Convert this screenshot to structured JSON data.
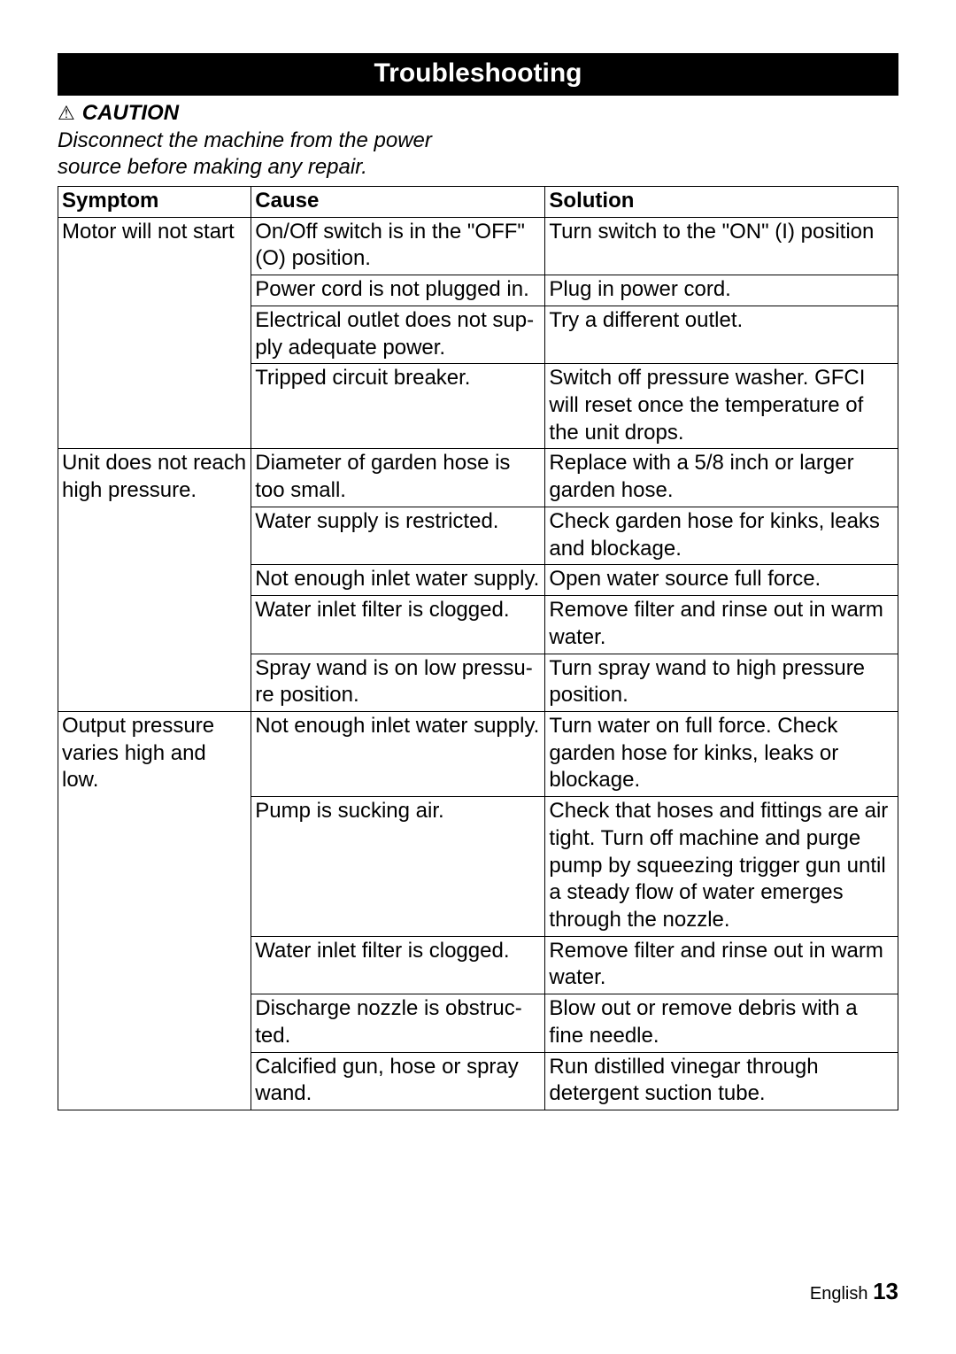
{
  "banner_title": "Troubleshooting",
  "caution_label": "CAUTION",
  "note_line1": "Disconnect the machine from the power",
  "note_line2": "source before making any repair.",
  "headers": {
    "symptom": "Symptom",
    "cause": "Cause",
    "solution": "Solution"
  },
  "rows": {
    "s1": "Motor will not start",
    "s1c1": "On/Off switch is in the \"OFF\" (O) position.",
    "s1s1": "Turn switch to the \"ON\" (I) po­sition",
    "s1c2": "Power cord is not plugged in.",
    "s1s2": "Plug in power cord.",
    "s1c3": "Electrical outlet does not sup­ply adequate power.",
    "s1s3": "Try a different outlet.",
    "s1c4": "Tripped circuit breaker.",
    "s1s4": "Switch off pressure washer. GFCI will reset once the tem­perature of the unit drops.",
    "s2": "Unit does not reach high pressure.",
    "s2c1": "Diameter of garden hose is too small.",
    "s2s1": "Replace with a 5/8 inch or lar­ger garden hose.",
    "s2c2": "Water supply is restricted.",
    "s2s2": "Check garden hose for kinks, leaks and blockage.",
    "s2c3": "Not enough inlet water supp­ly.",
    "s2s3": "Open water source full force.",
    "s2c4": "Water inlet filter is clogged.",
    "s2s4": "Remove filter and rinse out in warm water.",
    "s2c5": "Spray wand is on low pressu­re position.",
    "s2s5": "Turn spray wand to high pres­sure position.",
    "s3": "Output pressure va­ries high and low.",
    "s3c1": "Not enough inlet water supp­ly.",
    "s3s1": "Turn water on full force. Check garden hose for kinks, leaks or blockage.",
    "s3c2": "Pump is sucking air.",
    "s3s2": "Check that hoses and fittings are air tight. Turn off machine and purge pump by squee­zing trigger gun until a steady flow of water emerges throu­gh the nozzle.",
    "s3c3": "Water inlet filter is clogged.",
    "s3s3": "Remove filter and rinse out in warm water.",
    "s3c4": "Discharge nozzle is obstruc­ted.",
    "s3s4": "Blow out or remove debris with a fine needle.",
    "s3c5": "Calcified gun, hose or spray wand.",
    "s3s5": "Run distilled vinegar through detergent suction tube."
  },
  "footer_lang": "English",
  "footer_page": "13"
}
